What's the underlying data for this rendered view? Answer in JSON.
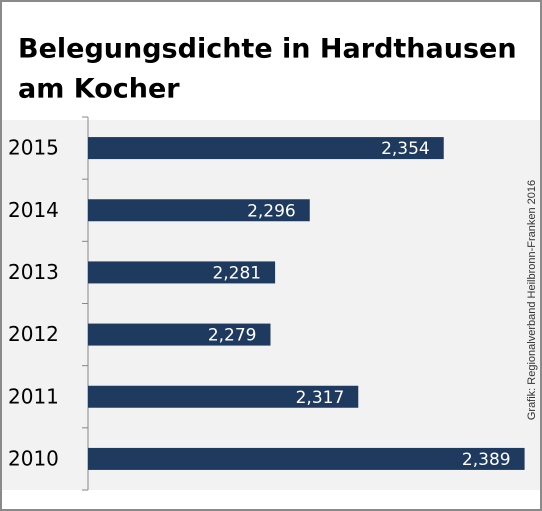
{
  "chart_data": {
    "type": "bar",
    "orientation": "horizontal",
    "title": "Belegungsdichte in Hardthausen am Kocher",
    "title_lines": [
      "Belegungsdichte in Hardthausen",
      "am Kocher"
    ],
    "categories": [
      "2015",
      "2014",
      "2013",
      "2012",
      "2011",
      "2010"
    ],
    "values": [
      2.354,
      2.296,
      2.281,
      2.279,
      2.317,
      2.389
    ],
    "value_labels": [
      "2,354",
      "2,296",
      "2,281",
      "2,279",
      "2,317",
      "2,389"
    ],
    "color": "#1f3a5f",
    "xlim": [
      2.2,
      2.4
    ],
    "credit": "Grafik: Regionalverband Heilbronn-Franken 2016"
  }
}
